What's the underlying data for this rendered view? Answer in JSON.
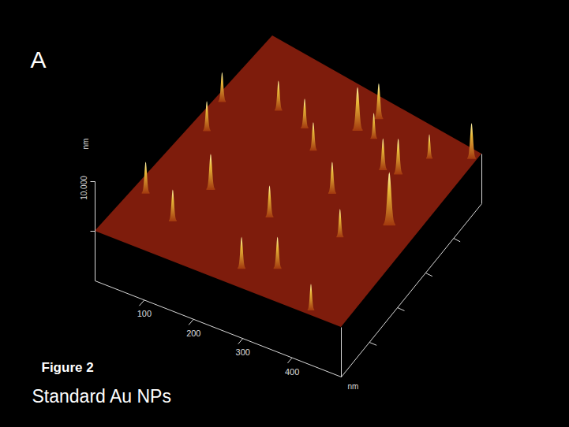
{
  "chart_data": {
    "type": "surface3d",
    "panel": "A",
    "caption": "Figure 2",
    "title": "Standard Au NPs",
    "x_label": "nm",
    "z_label": "nm",
    "xlim": [
      0,
      500
    ],
    "ylim": [
      0,
      500
    ],
    "zlim": [
      -10,
      10
    ],
    "xticks": [
      100,
      200,
      300,
      400
    ],
    "yticks": [
      {
        "value": 100,
        "label": null
      },
      {
        "value": 200,
        "label": null
      },
      {
        "value": 300,
        "label": null
      },
      {
        "value": 400,
        "label": null
      }
    ],
    "zticks": [
      {
        "value": 0,
        "label": null
      },
      {
        "value": 10,
        "label": "10.000"
      }
    ],
    "color": "#7e1c0c",
    "particles": {
      "x": [
        15,
        32,
        115,
        181,
        225,
        268,
        286,
        305,
        362,
        392,
        421,
        490,
        25,
        119,
        104,
        247,
        313,
        383,
        445,
        272,
        327,
        432
      ],
      "y": [
        340,
        275,
        376,
        368,
        335,
        415,
        458,
        416,
        365,
        372,
        435,
        480,
        110,
        170,
        79,
        167,
        270,
        190,
        261,
        41,
        71,
        12
      ],
      "height": [
        5.9,
        5.9,
        5.9,
        5.9,
        5.6,
        8.7,
        7.1,
        5.1,
        6.3,
        7.1,
        4.8,
        7.1,
        6.3,
        7.1,
        6.3,
        6.3,
        6.3,
        5.6,
        10.6,
        6.3,
        6.3,
        5.2
      ]
    }
  }
}
